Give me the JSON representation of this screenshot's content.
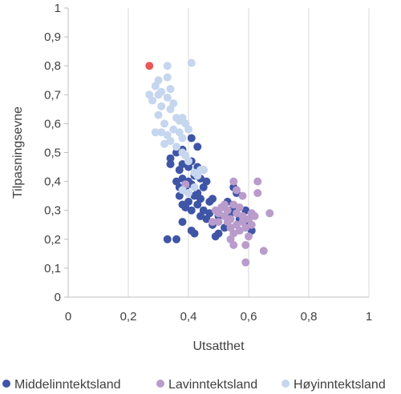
{
  "chart_data": {
    "type": "scatter",
    "xlabel": "Utsatthet",
    "ylabel": "Tilpasningsevne",
    "xlim": [
      0,
      1
    ],
    "ylim": [
      0,
      1
    ],
    "x_ticks": [
      "0",
      "0,2",
      "0,4",
      "0,6",
      "0,8",
      "1"
    ],
    "y_ticks": [
      "0",
      "0,1",
      "0,2",
      "0,3",
      "0,4",
      "0,5",
      "0,6",
      "0,7",
      "0,8",
      "0,9",
      "1"
    ],
    "grid": "vertical",
    "legend_position": "bottom",
    "series": [
      {
        "name": "Middelinntektsland",
        "color": "#3f55a6",
        "points": [
          [
            0.34,
            0.48
          ],
          [
            0.36,
            0.5
          ],
          [
            0.34,
            0.46
          ],
          [
            0.37,
            0.44
          ],
          [
            0.38,
            0.46
          ],
          [
            0.4,
            0.45
          ],
          [
            0.41,
            0.47
          ],
          [
            0.41,
            0.55
          ],
          [
            0.43,
            0.52
          ],
          [
            0.38,
            0.51
          ],
          [
            0.36,
            0.4
          ],
          [
            0.37,
            0.38
          ],
          [
            0.38,
            0.41
          ],
          [
            0.39,
            0.37
          ],
          [
            0.4,
            0.4
          ],
          [
            0.41,
            0.39
          ],
          [
            0.42,
            0.42
          ],
          [
            0.44,
            0.41
          ],
          [
            0.45,
            0.38
          ],
          [
            0.46,
            0.4
          ],
          [
            0.43,
            0.36
          ],
          [
            0.42,
            0.35
          ],
          [
            0.4,
            0.33
          ],
          [
            0.39,
            0.31
          ],
          [
            0.41,
            0.3
          ],
          [
            0.43,
            0.32
          ],
          [
            0.44,
            0.34
          ],
          [
            0.45,
            0.3
          ],
          [
            0.47,
            0.33
          ],
          [
            0.48,
            0.34
          ],
          [
            0.37,
            0.35
          ],
          [
            0.38,
            0.32
          ],
          [
            0.44,
            0.28
          ],
          [
            0.46,
            0.27
          ],
          [
            0.47,
            0.29
          ],
          [
            0.48,
            0.25
          ],
          [
            0.5,
            0.28
          ],
          [
            0.51,
            0.31
          ],
          [
            0.53,
            0.33
          ],
          [
            0.54,
            0.29
          ],
          [
            0.55,
            0.38
          ],
          [
            0.56,
            0.36
          ],
          [
            0.55,
            0.31
          ],
          [
            0.57,
            0.27
          ],
          [
            0.59,
            0.3
          ],
          [
            0.6,
            0.26
          ],
          [
            0.61,
            0.23
          ],
          [
            0.52,
            0.24
          ],
          [
            0.5,
            0.22
          ],
          [
            0.49,
            0.21
          ],
          [
            0.41,
            0.23
          ],
          [
            0.42,
            0.22
          ],
          [
            0.38,
            0.26
          ],
          [
            0.36,
            0.2
          ],
          [
            0.33,
            0.2
          ],
          [
            0.45,
            0.44
          ],
          [
            0.43,
            0.45
          ]
        ]
      },
      {
        "name": "Lavinntektsland",
        "color": "#b99bcc",
        "points": [
          [
            0.39,
            0.39
          ],
          [
            0.49,
            0.3
          ],
          [
            0.5,
            0.29
          ],
          [
            0.51,
            0.31
          ],
          [
            0.52,
            0.28
          ],
          [
            0.53,
            0.3
          ],
          [
            0.54,
            0.27
          ],
          [
            0.55,
            0.32
          ],
          [
            0.56,
            0.29
          ],
          [
            0.57,
            0.31
          ],
          [
            0.58,
            0.28
          ],
          [
            0.53,
            0.26
          ],
          [
            0.54,
            0.24
          ],
          [
            0.55,
            0.22
          ],
          [
            0.56,
            0.25
          ],
          [
            0.57,
            0.23
          ],
          [
            0.58,
            0.26
          ],
          [
            0.59,
            0.24
          ],
          [
            0.6,
            0.27
          ],
          [
            0.61,
            0.29
          ],
          [
            0.62,
            0.28
          ],
          [
            0.63,
            0.36
          ],
          [
            0.63,
            0.4
          ],
          [
            0.58,
            0.35
          ],
          [
            0.56,
            0.37
          ],
          [
            0.55,
            0.4
          ],
          [
            0.67,
            0.29
          ],
          [
            0.65,
            0.16
          ],
          [
            0.59,
            0.12
          ],
          [
            0.59,
            0.18
          ],
          [
            0.55,
            0.18
          ],
          [
            0.54,
            0.2
          ],
          [
            0.5,
            0.26
          ],
          [
            0.48,
            0.26
          ],
          [
            0.52,
            0.32
          ],
          [
            0.6,
            0.21
          ],
          [
            0.61,
            0.25
          ]
        ]
      },
      {
        "name": "Høyinntektsland",
        "color": "#c5d6ee",
        "points": [
          [
            0.33,
            0.8
          ],
          [
            0.41,
            0.81
          ],
          [
            0.29,
            0.73
          ],
          [
            0.3,
            0.75
          ],
          [
            0.31,
            0.71
          ],
          [
            0.27,
            0.7
          ],
          [
            0.28,
            0.68
          ],
          [
            0.3,
            0.7
          ],
          [
            0.33,
            0.76
          ],
          [
            0.34,
            0.72
          ],
          [
            0.33,
            0.69
          ],
          [
            0.35,
            0.67
          ],
          [
            0.31,
            0.66
          ],
          [
            0.34,
            0.65
          ],
          [
            0.3,
            0.63
          ],
          [
            0.36,
            0.62
          ],
          [
            0.37,
            0.61
          ],
          [
            0.38,
            0.62
          ],
          [
            0.39,
            0.6
          ],
          [
            0.32,
            0.6
          ],
          [
            0.29,
            0.57
          ],
          [
            0.31,
            0.57
          ],
          [
            0.33,
            0.56
          ],
          [
            0.35,
            0.58
          ],
          [
            0.37,
            0.57
          ],
          [
            0.32,
            0.53
          ],
          [
            0.34,
            0.54
          ],
          [
            0.36,
            0.52
          ],
          [
            0.38,
            0.55
          ],
          [
            0.4,
            0.58
          ],
          [
            0.38,
            0.5
          ],
          [
            0.39,
            0.49
          ],
          [
            0.4,
            0.47
          ],
          [
            0.42,
            0.43
          ],
          [
            0.43,
            0.42
          ],
          [
            0.44,
            0.44
          ],
          [
            0.45,
            0.44
          ],
          [
            0.42,
            0.38
          ],
          [
            0.4,
            0.36
          ],
          [
            0.38,
            0.37
          ]
        ]
      },
      {
        "name": "",
        "color": "#e8575a",
        "points": [
          [
            0.27,
            0.8
          ]
        ]
      }
    ]
  }
}
